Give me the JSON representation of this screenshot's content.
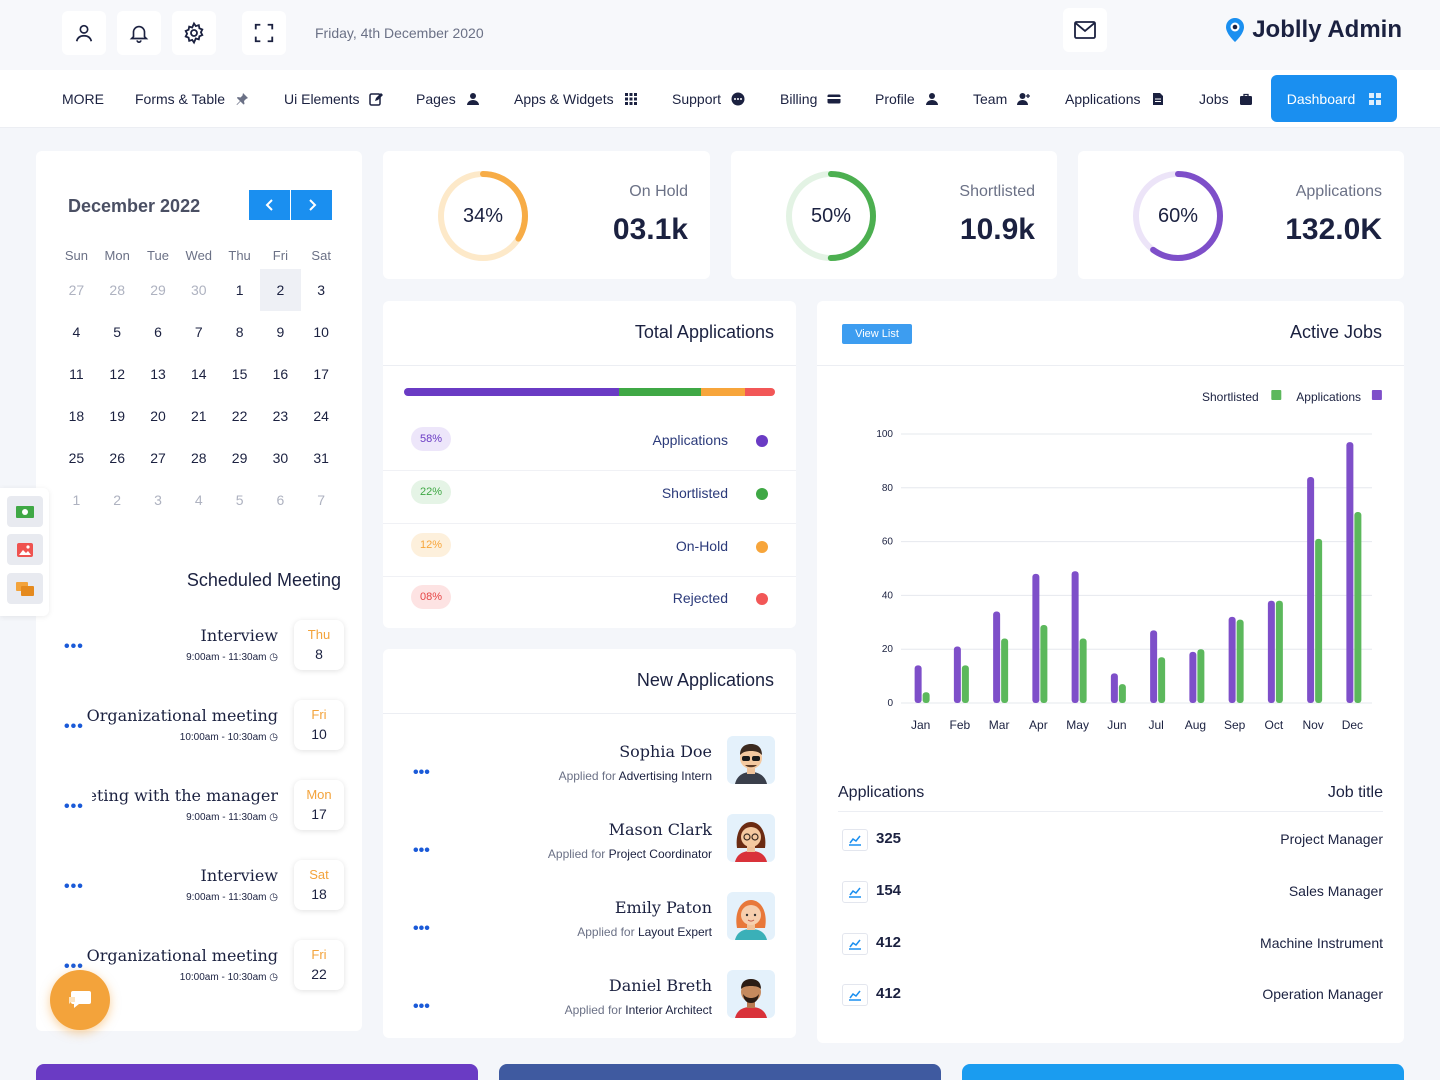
{
  "header": {
    "date": "Friday, 4th December 2020",
    "brand": "Joblly Admin"
  },
  "nav": {
    "items": [
      "MORE",
      "Forms & Table",
      "Ui Elements",
      "Pages",
      "Apps & Widgets",
      "Support",
      "Billing",
      "Profile",
      "Team",
      "Applications",
      "Jobs"
    ],
    "active": "Dashboard"
  },
  "calendar": {
    "title": "December 2022",
    "weekdays": [
      "Sun",
      "Mon",
      "Tue",
      "Wed",
      "Thu",
      "Fri",
      "Sat"
    ],
    "weeks": [
      [
        "27",
        "28",
        "29",
        "30",
        "1",
        "2",
        "3"
      ],
      [
        "4",
        "5",
        "6",
        "7",
        "8",
        "9",
        "10"
      ],
      [
        "11",
        "12",
        "13",
        "14",
        "15",
        "16",
        "17"
      ],
      [
        "18",
        "19",
        "20",
        "21",
        "22",
        "23",
        "24"
      ],
      [
        "25",
        "26",
        "27",
        "28",
        "29",
        "30",
        "31"
      ],
      [
        "1",
        "2",
        "3",
        "4",
        "5",
        "6",
        "7"
      ]
    ],
    "selected": "2"
  },
  "meetings": {
    "title": "Scheduled Meeting",
    "items": [
      {
        "title": "Interview",
        "time": "9:00am - 11:30am",
        "day": "Thu",
        "date": "8"
      },
      {
        "title": "Organizational meeting",
        "time": "10:00am - 10:30am",
        "day": "Fri",
        "date": "10"
      },
      {
        "title": "Meeting with the manager",
        "time": "9:00am - 11:30am",
        "day": "Mon",
        "date": "17"
      },
      {
        "title": "Interview",
        "time": "9:00am - 11:30am",
        "day": "Sat",
        "date": "18"
      },
      {
        "title": "Organizational meeting",
        "time": "10:00am - 10:30am",
        "day": "Fri",
        "date": "22"
      }
    ]
  },
  "stats": [
    {
      "label": "On Hold",
      "value": "03.1k",
      "percent_text": "34%",
      "percent": 34,
      "color": "#f7ac46",
      "track": "#fde9c9"
    },
    {
      "label": "Shortlisted",
      "value": "10.9k",
      "percent_text": "50%",
      "percent": 50,
      "color": "#4caf50",
      "track": "#e3f3e4"
    },
    {
      "label": "Applications",
      "value": "132.0K",
      "percent_text": "60%",
      "percent": 60,
      "color": "#7e4fc9",
      "track": "#ece4f8"
    }
  ],
  "total_applications": {
    "title": "Total Applications",
    "segments": [
      {
        "name": "Applications",
        "pct_text": "58%",
        "pct": 58,
        "color": "#6a3bc4",
        "pill_bg": "#ede6fa",
        "pill_fg": "#6a3bc4"
      },
      {
        "name": "Shortlisted",
        "pct_text": "22%",
        "pct": 22,
        "color": "#3fa845",
        "pill_bg": "#e5f4e6",
        "pill_fg": "#3fa845"
      },
      {
        "name": "On-Hold",
        "pct_text": "12%",
        "pct": 12,
        "color": "#f7a53b",
        "pill_bg": "#fdf0dc",
        "pill_fg": "#f7a53b"
      },
      {
        "name": "Rejected",
        "pct_text": "08%",
        "pct": 8,
        "color": "#f25757",
        "pill_bg": "#fde3e3",
        "pill_fg": "#e64545"
      }
    ]
  },
  "new_applications": {
    "title": "New Applications",
    "applied_for": "Applied for",
    "items": [
      {
        "name": "Sophia Doe",
        "role": "Advertising Intern"
      },
      {
        "name": "Mason Clark",
        "role": "Project Coordinator"
      },
      {
        "name": "Emily Paton",
        "role": "Layout Expert"
      },
      {
        "name": "Daniel Breth",
        "role": "Interior Architect"
      }
    ]
  },
  "active_jobs": {
    "title": "Active Jobs",
    "view_list": "View List",
    "table_headers": {
      "left": "Applications",
      "right": "Job title"
    },
    "rows": [
      {
        "count": "325",
        "title": "Project Manager"
      },
      {
        "count": "154",
        "title": "Sales Manager"
      },
      {
        "count": "412",
        "title": "Machine Instrument"
      },
      {
        "count": "412",
        "title": "Operation Manager"
      }
    ]
  },
  "chart_data": {
    "type": "bar",
    "categories": [
      "Jan",
      "Feb",
      "Mar",
      "Apr",
      "May",
      "Jun",
      "Jul",
      "Aug",
      "Sep",
      "Oct",
      "Nov",
      "Dec"
    ],
    "series": [
      {
        "name": "Applications",
        "color": "#7e4fc9",
        "values": [
          14,
          21,
          34,
          48,
          49,
          11,
          27,
          19,
          32,
          38,
          84,
          97
        ]
      },
      {
        "name": "Shortlisted",
        "color": "#5cb85c",
        "values": [
          4,
          14,
          24,
          29,
          24,
          7,
          17,
          20,
          31,
          38,
          61,
          71
        ]
      }
    ],
    "ylim": [
      0,
      100
    ],
    "yticks": [
      0,
      20,
      40,
      60,
      80,
      100
    ],
    "grid": true,
    "legend": "top-right"
  }
}
